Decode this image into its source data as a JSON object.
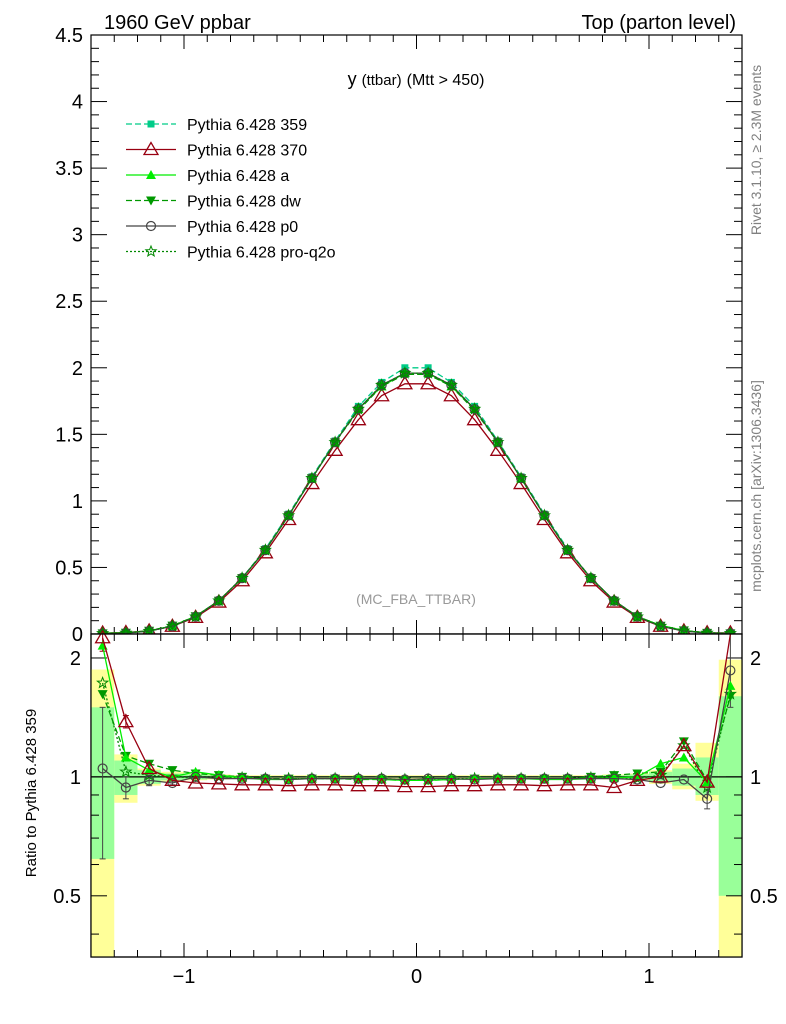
{
  "header": {
    "left": "1960 GeV ppbar",
    "right": "Top (parton level)"
  },
  "plot_title": {
    "main": "y",
    "sub": "(ttbar)",
    "cond": "(Mtt > 450)"
  },
  "analysis_tag": "(MC_FBA_TTBAR)",
  "side_labels": {
    "rivet": "Rivet 3.1.10, ≥ 2.3M events",
    "site": "mcplots.cern.ch [arXiv:1306.3436]"
  },
  "ratio_ylabel": "Ratio to Pythia 6.428 359",
  "colors": {
    "s359": "#00cc88",
    "s370": "#990011",
    "a": "#00ee00",
    "dw": "#009900",
    "p0": "#444444",
    "pro": "#008800",
    "band_yellow": "#ffff99",
    "band_green": "#99ff99"
  },
  "chart_data": [
    {
      "type": "line",
      "panel": "main",
      "x": [
        -1.35,
        -1.25,
        -1.15,
        -1.05,
        -0.95,
        -0.85,
        -0.75,
        -0.65,
        -0.55,
        -0.45,
        -0.35,
        -0.25,
        -0.15,
        -0.05,
        0.05,
        0.15,
        0.25,
        0.35,
        0.45,
        0.55,
        0.65,
        0.75,
        0.85,
        0.95,
        1.05,
        1.15,
        1.25,
        1.35
      ],
      "xlim": [
        -1.4,
        1.4
      ],
      "ylim": [
        0,
        4.5
      ],
      "yticks": [
        0,
        0.5,
        1,
        1.5,
        2,
        2.5,
        3,
        3.5,
        4,
        4.5
      ],
      "ytick_labels": [
        "0",
        "0.5",
        "1",
        "1.5",
        "2",
        "2.5",
        "3",
        "3.5",
        "4",
        "4.5"
      ],
      "legend_position": "top-left",
      "series": [
        {
          "key": "s359",
          "name": "Pythia 6.428 359",
          "marker": "square",
          "dash": "dashed",
          "values": [
            0.003,
            0.008,
            0.022,
            0.06,
            0.13,
            0.25,
            0.42,
            0.64,
            0.9,
            1.18,
            1.45,
            1.71,
            1.89,
            2.0,
            2.0,
            1.89,
            1.71,
            1.45,
            1.18,
            0.9,
            0.64,
            0.42,
            0.25,
            0.13,
            0.06,
            0.022,
            0.008,
            0.003
          ]
        },
        {
          "key": "s370",
          "name": "Pythia 6.428 370",
          "marker": "triangle-open",
          "dash": "solid",
          "values": [
            0.007,
            0.011,
            0.023,
            0.058,
            0.125,
            0.24,
            0.4,
            0.61,
            0.86,
            1.13,
            1.38,
            1.61,
            1.79,
            1.88,
            1.88,
            1.79,
            1.61,
            1.38,
            1.13,
            0.86,
            0.61,
            0.4,
            0.24,
            0.125,
            0.058,
            0.023,
            0.009,
            0.008
          ]
        },
        {
          "key": "a",
          "name": "Pythia 6.428 a",
          "marker": "triangle",
          "dash": "solid",
          "values": [
            0.006,
            0.009,
            0.023,
            0.061,
            0.134,
            0.25,
            0.42,
            0.63,
            0.89,
            1.17,
            1.44,
            1.69,
            1.86,
            1.96,
            1.96,
            1.86,
            1.69,
            1.44,
            1.17,
            0.89,
            0.63,
            0.42,
            0.25,
            0.131,
            0.065,
            0.026,
            0.008,
            0.006
          ]
        },
        {
          "key": "dw",
          "name": "Pythia 6.428 dw",
          "marker": "triangle-down",
          "dash": "dashed",
          "values": [
            0.005,
            0.009,
            0.024,
            0.063,
            0.133,
            0.25,
            0.42,
            0.63,
            0.89,
            1.17,
            1.44,
            1.68,
            1.86,
            1.95,
            1.95,
            1.86,
            1.68,
            1.44,
            1.17,
            0.89,
            0.63,
            0.42,
            0.25,
            0.133,
            0.062,
            0.027,
            0.008,
            0.005
          ]
        },
        {
          "key": "p0",
          "name": "Pythia 6.428 p0",
          "marker": "circle-open",
          "dash": "solid",
          "values": [
            0.003,
            0.007,
            0.022,
            0.058,
            0.13,
            0.25,
            0.42,
            0.63,
            0.89,
            1.17,
            1.44,
            1.69,
            1.87,
            1.96,
            1.96,
            1.87,
            1.69,
            1.44,
            1.17,
            0.89,
            0.63,
            0.42,
            0.25,
            0.13,
            0.058,
            0.022,
            0.007,
            0.006
          ]
        },
        {
          "key": "pro",
          "name": "Pythia 6.428 pro-q2o",
          "marker": "star-open",
          "dash": "dotted",
          "values": [
            0.005,
            0.008,
            0.022,
            0.06,
            0.13,
            0.25,
            0.42,
            0.63,
            0.89,
            1.17,
            1.44,
            1.69,
            1.87,
            1.96,
            1.96,
            1.87,
            1.69,
            1.44,
            1.17,
            0.89,
            0.63,
            0.42,
            0.25,
            0.13,
            0.06,
            0.024,
            0.008,
            0.005
          ]
        }
      ]
    },
    {
      "type": "line",
      "panel": "ratio",
      "x": [
        -1.35,
        -1.25,
        -1.15,
        -1.05,
        -0.95,
        -0.85,
        -0.75,
        -0.65,
        -0.55,
        -0.45,
        -0.35,
        -0.25,
        -0.15,
        -0.05,
        0.05,
        0.15,
        0.25,
        0.35,
        0.45,
        0.55,
        0.65,
        0.75,
        0.85,
        0.95,
        1.05,
        1.15,
        1.25,
        1.35
      ],
      "xlim": [
        -1.4,
        1.4
      ],
      "ylim": [
        0.35,
        2.3
      ],
      "xticks": [
        -1,
        0,
        1
      ],
      "xtick_labels": [
        "−1",
        "0",
        "1"
      ],
      "yticks": [
        0.5,
        1,
        2
      ],
      "ytick_labels": [
        "0.5",
        "1",
        "2"
      ],
      "reference": 1,
      "band_yellow": {
        "lo": [
          0.3,
          0.86,
          0.95,
          0.97,
          0.98,
          0.985,
          0.99,
          0.99,
          0.99,
          0.99,
          0.99,
          0.99,
          0.99,
          0.99,
          0.99,
          0.99,
          0.99,
          0.99,
          0.99,
          0.99,
          0.99,
          0.99,
          0.985,
          0.98,
          0.96,
          0.93,
          0.87,
          0.3
        ],
        "hi": [
          1.87,
          1.14,
          1.05,
          1.03,
          1.02,
          1.015,
          1.01,
          1.01,
          1.01,
          1.01,
          1.01,
          1.01,
          1.01,
          1.01,
          1.01,
          1.01,
          1.01,
          1.01,
          1.01,
          1.01,
          1.01,
          1.01,
          1.015,
          1.02,
          1.04,
          1.08,
          1.22,
          1.98
        ]
      },
      "band_green": {
        "lo": [
          0.62,
          0.9,
          0.96,
          0.98,
          0.985,
          0.99,
          0.995,
          0.995,
          0.995,
          0.995,
          0.995,
          0.995,
          0.995,
          0.995,
          0.995,
          0.995,
          0.995,
          0.995,
          0.995,
          0.995,
          0.995,
          0.995,
          0.99,
          0.985,
          0.97,
          0.95,
          0.9,
          0.5
        ],
        "hi": [
          1.5,
          1.1,
          1.04,
          1.02,
          1.015,
          1.01,
          1.005,
          1.005,
          1.005,
          1.005,
          1.005,
          1.005,
          1.005,
          1.005,
          1.005,
          1.005,
          1.005,
          1.005,
          1.005,
          1.005,
          1.005,
          1.005,
          1.01,
          1.015,
          1.03,
          1.05,
          1.12,
          1.6
        ]
      },
      "series": [
        {
          "key": "s370",
          "name": "Pythia 6.428 370",
          "marker": "triangle-open",
          "dash": "solid",
          "values": [
            2.25,
            1.38,
            1.05,
            0.98,
            0.965,
            0.96,
            0.955,
            0.955,
            0.95,
            0.955,
            0.955,
            0.95,
            0.95,
            0.945,
            0.945,
            0.95,
            0.95,
            0.955,
            0.955,
            0.95,
            0.955,
            0.955,
            0.94,
            0.98,
            1.0,
            1.2,
            0.97,
            2.4
          ]
        },
        {
          "key": "a",
          "name": "Pythia 6.428 a",
          "marker": "triangle",
          "dash": "solid",
          "values": [
            2.15,
            1.12,
            1.04,
            1.0,
            1.03,
            1.01,
            0.995,
            0.985,
            0.985,
            0.99,
            0.99,
            0.99,
            0.985,
            0.98,
            0.98,
            0.985,
            0.99,
            0.99,
            0.99,
            0.985,
            0.985,
            0.99,
            0.995,
            1.0,
            1.08,
            1.12,
            0.97,
            1.7
          ]
        },
        {
          "key": "dw",
          "name": "Pythia 6.428 dw",
          "marker": "triangle-down",
          "dash": "dashed",
          "values": [
            1.62,
            1.13,
            1.08,
            1.04,
            1.02,
            1.01,
            1.0,
            0.99,
            0.99,
            0.99,
            0.99,
            0.985,
            0.985,
            0.98,
            0.98,
            0.985,
            0.99,
            0.99,
            0.99,
            0.99,
            0.99,
            1.0,
            1.01,
            1.02,
            1.03,
            1.23,
            0.98,
            1.6
          ]
        },
        {
          "key": "p0",
          "name": "Pythia 6.428 p0",
          "marker": "circle-open",
          "dash": "solid",
          "values": [
            1.05,
            0.94,
            0.98,
            0.965,
            1.0,
            0.99,
            0.99,
            0.99,
            0.985,
            0.99,
            0.99,
            0.99,
            0.99,
            0.985,
            0.99,
            0.99,
            0.985,
            0.99,
            0.99,
            0.99,
            0.99,
            0.99,
            0.99,
            0.985,
            0.965,
            0.985,
            0.88,
            1.86
          ]
        },
        {
          "key": "pro",
          "name": "Pythia 6.428 pro-q2o",
          "marker": "star-open",
          "dash": "dotted",
          "values": [
            1.73,
            1.03,
            1.01,
            1.0,
            0.995,
            1.0,
            0.995,
            0.99,
            0.99,
            0.99,
            0.99,
            0.99,
            0.99,
            0.985,
            0.985,
            0.99,
            0.99,
            0.99,
            0.99,
            0.99,
            0.99,
            0.995,
            1.0,
            0.99,
            1.01,
            1.2,
            0.94,
            1.62
          ]
        }
      ],
      "errorbars": {
        "p0": {
          "lo": [
            0.62,
            0.88,
            0.95,
            0.955,
            0.99
          ],
          "hi": [
            1.5,
            1.0,
            1.01,
            0.975,
            1.01
          ],
          "idx": [
            0,
            1,
            2,
            3,
            4
          ]
        },
        "s370": {
          "lo": [
            2.08,
            1.33
          ],
          "hi": [
            2.3,
            1.43
          ],
          "idx": [
            0,
            1
          ]
        },
        "p0_right": {
          "lo": [
            0.83,
            1.5
          ],
          "hi": [
            0.93,
            2.3
          ],
          "idx": [
            26,
            27
          ]
        }
      }
    }
  ]
}
